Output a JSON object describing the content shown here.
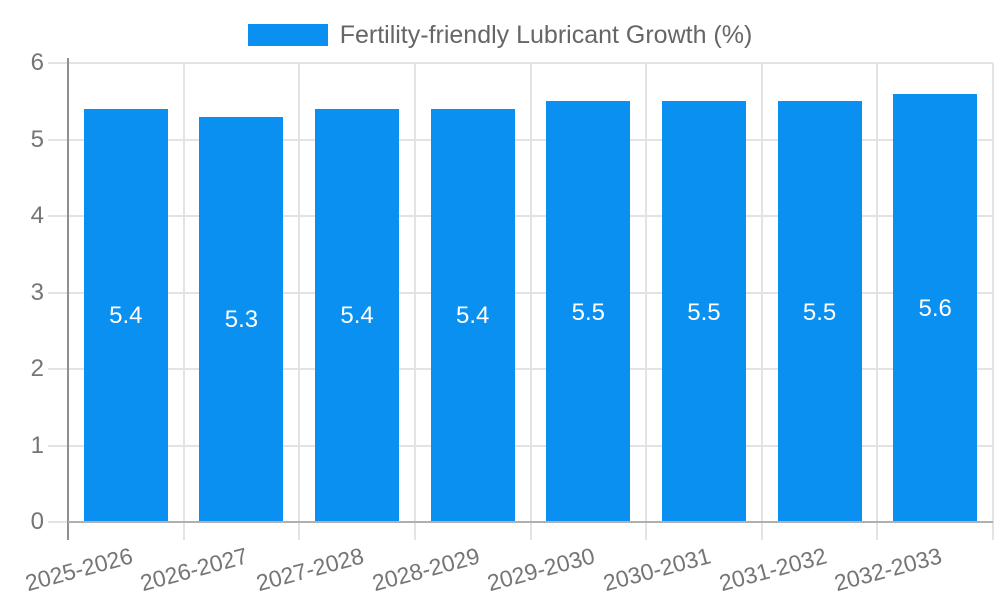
{
  "chart_data": {
    "type": "bar",
    "title": "Fertility-friendly Lubricant Growth (%)",
    "categories": [
      "2025-2026",
      "2026-2027",
      "2027-2028",
      "2028-2029",
      "2029-2030",
      "2030-2031",
      "2031-2032",
      "2032-2033"
    ],
    "values": [
      5.4,
      5.3,
      5.4,
      5.4,
      5.5,
      5.5,
      5.5,
      5.6
    ],
    "value_labels": [
      "5.4",
      "5.3",
      "5.4",
      "5.4",
      "5.5",
      "5.5",
      "5.5",
      "5.6"
    ],
    "xlabel": "",
    "ylabel": "",
    "ylim": [
      0,
      6
    ],
    "yticks": [
      0,
      1,
      2,
      3,
      4,
      5,
      6
    ],
    "grid": true,
    "legend_position": "top",
    "value_label_position": "middle-of-bar",
    "colors": {
      "bar": "#0a90f0",
      "gridline": "#e3e3e3",
      "y_axis_line": "#8f8f8f",
      "x_baseline": "#b0b0b0",
      "tick_label": "#757575",
      "legend_text": "#666666",
      "value_label": "#ffffff",
      "background": "#ffffff"
    }
  }
}
